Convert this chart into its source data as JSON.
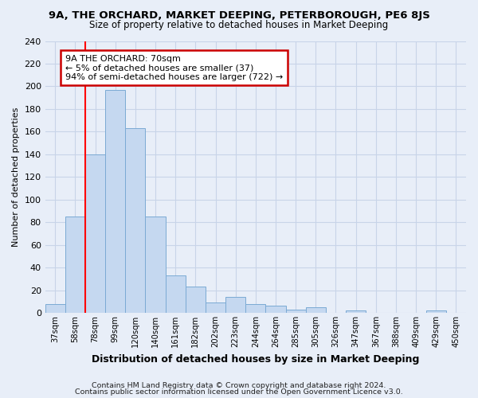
{
  "title1": "9A, THE ORCHARD, MARKET DEEPING, PETERBOROUGH, PE6 8JS",
  "title2": "Size of property relative to detached houses in Market Deeping",
  "xlabel": "Distribution of detached houses by size in Market Deeping",
  "ylabel": "Number of detached properties",
  "footnote1": "Contains HM Land Registry data © Crown copyright and database right 2024.",
  "footnote2": "Contains public sector information licensed under the Open Government Licence v3.0.",
  "bin_labels": [
    "37sqm",
    "58sqm",
    "78sqm",
    "99sqm",
    "120sqm",
    "140sqm",
    "161sqm",
    "182sqm",
    "202sqm",
    "223sqm",
    "244sqm",
    "264sqm",
    "285sqm",
    "305sqm",
    "326sqm",
    "347sqm",
    "367sqm",
    "388sqm",
    "409sqm",
    "429sqm",
    "450sqm"
  ],
  "bar_values": [
    8,
    85,
    140,
    197,
    163,
    85,
    33,
    23,
    9,
    14,
    8,
    6,
    3,
    5,
    0,
    2,
    0,
    0,
    0,
    2,
    0
  ],
  "bar_color": "#c5d8f0",
  "bar_edge_color": "#7baad4",
  "grid_color": "#c8d4e8",
  "bg_color": "#e8eef8",
  "red_line_x": 2.0,
  "annotation_text": "9A THE ORCHARD: 70sqm\n← 5% of detached houses are smaller (37)\n94% of semi-detached houses are larger (722) →",
  "annotation_box_color": "#ffffff",
  "annotation_border_color": "#cc0000",
  "ylim": [
    0,
    240
  ],
  "yticks": [
    0,
    20,
    40,
    60,
    80,
    100,
    120,
    140,
    160,
    180,
    200,
    220,
    240
  ]
}
